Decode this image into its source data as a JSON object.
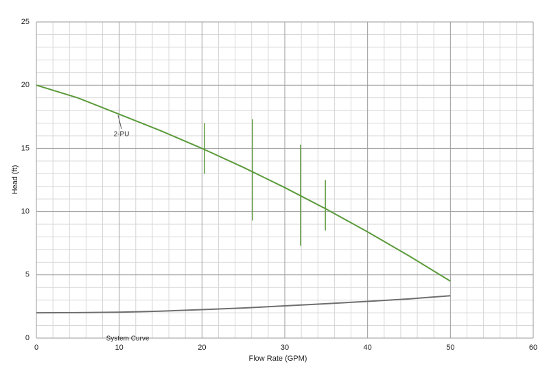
{
  "chart_data": {
    "type": "line",
    "x_label": "Flow Rate (GPM)",
    "y_label": "Head (ft)",
    "x": [
      0,
      5,
      10,
      15,
      20,
      25,
      30,
      35,
      40,
      45,
      50
    ],
    "series": [
      {
        "name": "2-PU",
        "color": "#5b9a3a",
        "values": [
          20,
          19.0,
          17.7,
          16.4,
          15.0,
          13.5,
          11.9,
          10.2,
          8.4,
          6.5,
          4.5
        ]
      },
      {
        "name": "System Curve",
        "color": "#6e6e6e",
        "values": [
          2.0,
          2.01,
          2.05,
          2.13,
          2.25,
          2.38,
          2.55,
          2.72,
          2.9,
          3.1,
          3.35
        ]
      }
    ],
    "ranges": {
      "color": "#5b9a3a",
      "x": [
        20.3,
        26.1,
        31.9,
        34.9
      ],
      "low": [
        13.0,
        9.3,
        7.3,
        8.5
      ],
      "high": [
        17.0,
        17.3,
        15.3,
        12.5
      ]
    },
    "xlim": [
      0,
      60
    ],
    "xticks": [
      0,
      10,
      20,
      30,
      40,
      50,
      60
    ],
    "ylim": [
      0,
      25
    ],
    "yticks": [
      0,
      5,
      10,
      15,
      20,
      25
    ],
    "grid": true,
    "minor_grid": true
  }
}
